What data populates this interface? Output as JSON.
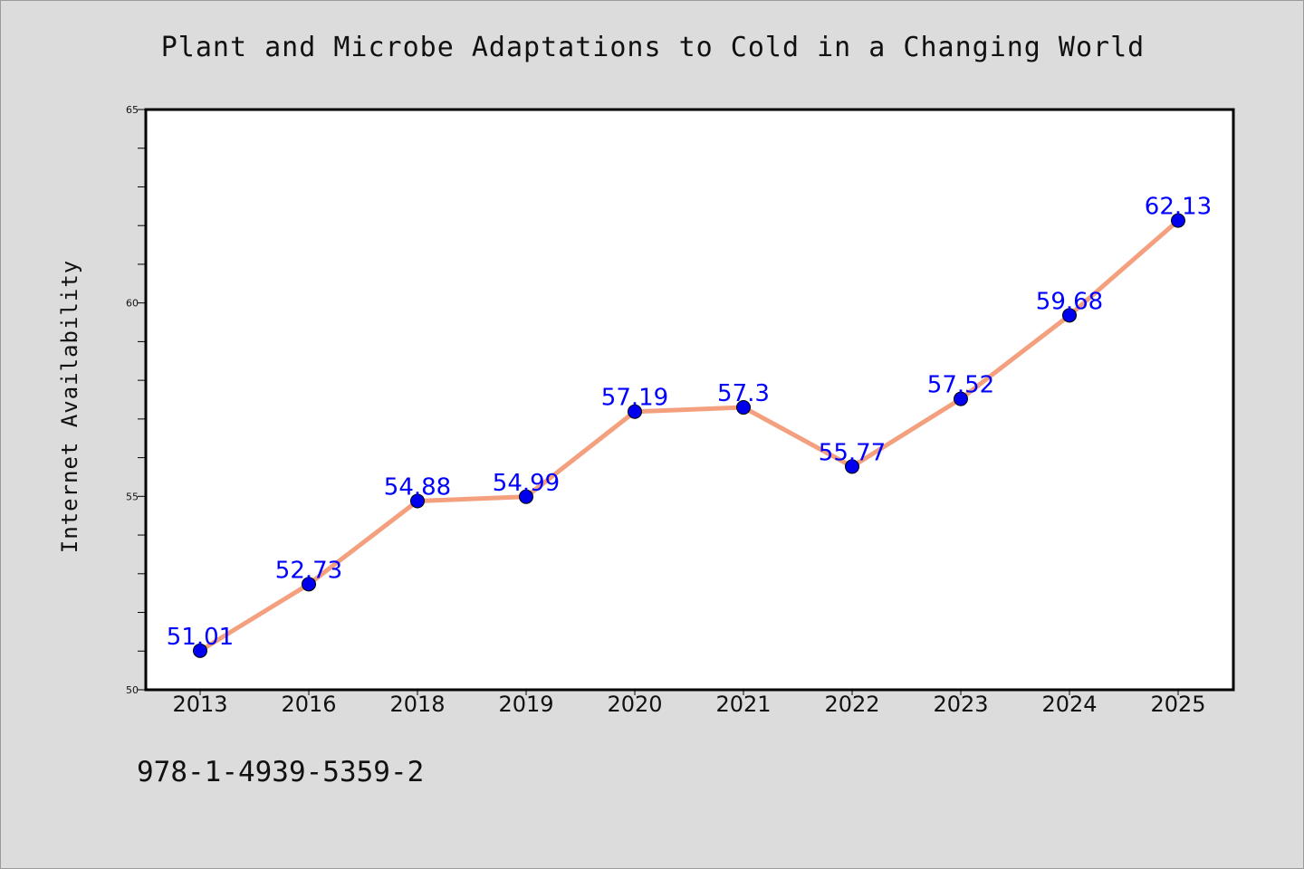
{
  "title": "Plant and Microbe Adaptations to Cold in a Changing World",
  "footer_code": "978-1-4939-5359-2",
  "colors": {
    "background": "#dcdcdc",
    "plot_background": "#ffffff",
    "line": "#f4a07e",
    "marker": "#0000ee",
    "data_label": "#0000ff"
  },
  "chart_data": {
    "type": "line",
    "title": "Plant and Microbe Adaptations to Cold in a Changing World",
    "xlabel": "",
    "ylabel": "Internet Availability",
    "categories": [
      "2013",
      "2016",
      "2018",
      "2019",
      "2020",
      "2021",
      "2022",
      "2023",
      "2024",
      "2025"
    ],
    "series": [
      {
        "values": [
          51.01,
          52.73,
          54.88,
          54.99,
          57.19,
          57.3,
          55.77,
          57.52,
          59.68,
          62.13
        ],
        "labels": [
          "51.01",
          "52.73",
          "54.88",
          "54.99",
          "57.19",
          "57.3",
          "55.77",
          "57.52",
          "59.68",
          "62.13"
        ]
      }
    ],
    "ylim": [
      50,
      65
    ],
    "yticks": [
      50,
      55,
      60,
      65
    ],
    "ytick_labels": [
      "50",
      "55",
      "60",
      "65"
    ],
    "y_minor_step": 1,
    "grid": false,
    "legend": "none"
  }
}
